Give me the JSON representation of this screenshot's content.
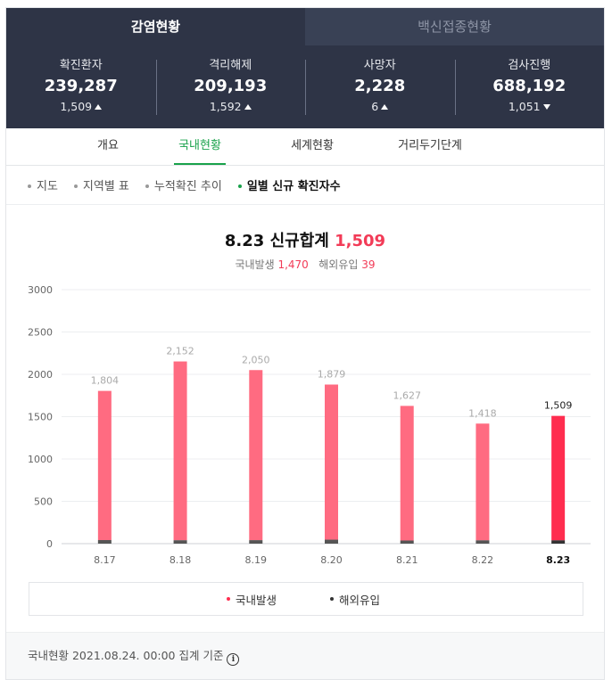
{
  "tabs": [
    {
      "label": "감염현황",
      "active": true
    },
    {
      "label": "백신접종현황",
      "active": false
    }
  ],
  "stats": [
    {
      "label": "확진환자",
      "value": "239,287",
      "delta": "1,509",
      "direction": "up"
    },
    {
      "label": "격리해제",
      "value": "209,193",
      "delta": "1,592",
      "direction": "up"
    },
    {
      "label": "사망자",
      "value": "2,228",
      "delta": "6",
      "direction": "up"
    },
    {
      "label": "검사진행",
      "value": "688,192",
      "delta": "1,051",
      "direction": "down"
    }
  ],
  "subnav": [
    {
      "label": "개요",
      "active": false
    },
    {
      "label": "국내현황",
      "active": true
    },
    {
      "label": "세계현황",
      "active": false
    },
    {
      "label": "거리두기단계",
      "active": false
    }
  ],
  "filters": [
    {
      "label": "지도",
      "active": false
    },
    {
      "label": "지역별 표",
      "active": false
    },
    {
      "label": "누적확진 추이",
      "active": false
    },
    {
      "label": "일별 신규 확진자수",
      "active": true
    }
  ],
  "summary": {
    "date": "8.23",
    "title_label": "신규합계",
    "total": "1,509",
    "domestic_label": "국내발생",
    "domestic_value": "1,470",
    "overseas_label": "해외유입",
    "overseas_value": "39"
  },
  "chart_data": {
    "type": "bar",
    "stacked": true,
    "categories": [
      "8.17",
      "8.18",
      "8.19",
      "8.20",
      "8.21",
      "8.22",
      "8.23"
    ],
    "series": [
      {
        "name": "국내발생",
        "values": [
          1762,
          2112,
          2009,
          1832,
          1590,
          1379,
          1470
        ],
        "color": "#ff6b81"
      },
      {
        "name": "해외유입",
        "values": [
          42,
          40,
          41,
          47,
          37,
          39,
          39
        ],
        "color": "#555555"
      }
    ],
    "totals": [
      1804,
      2152,
      2050,
      1879,
      1627,
      1418,
      1509
    ],
    "total_labels": [
      "1,804",
      "2,152",
      "2,050",
      "1,879",
      "1,627",
      "1,418",
      "1,509"
    ],
    "highlight_index": 6,
    "highlight_color": "#ff2d4f",
    "y_ticks": [
      0,
      500,
      1000,
      1500,
      2000,
      2500,
      3000
    ],
    "ylim": [
      0,
      3000
    ],
    "grid": true,
    "legend_position": "bottom"
  },
  "legend": {
    "domestic": {
      "label": "국내발생",
      "color": "#ff2d4f"
    },
    "overseas": {
      "label": "해외유입",
      "color": "#333333"
    }
  },
  "footer": {
    "text": "국내현황 2021.08.24. 00:00 집계 기준",
    "icon": "info-icon"
  }
}
